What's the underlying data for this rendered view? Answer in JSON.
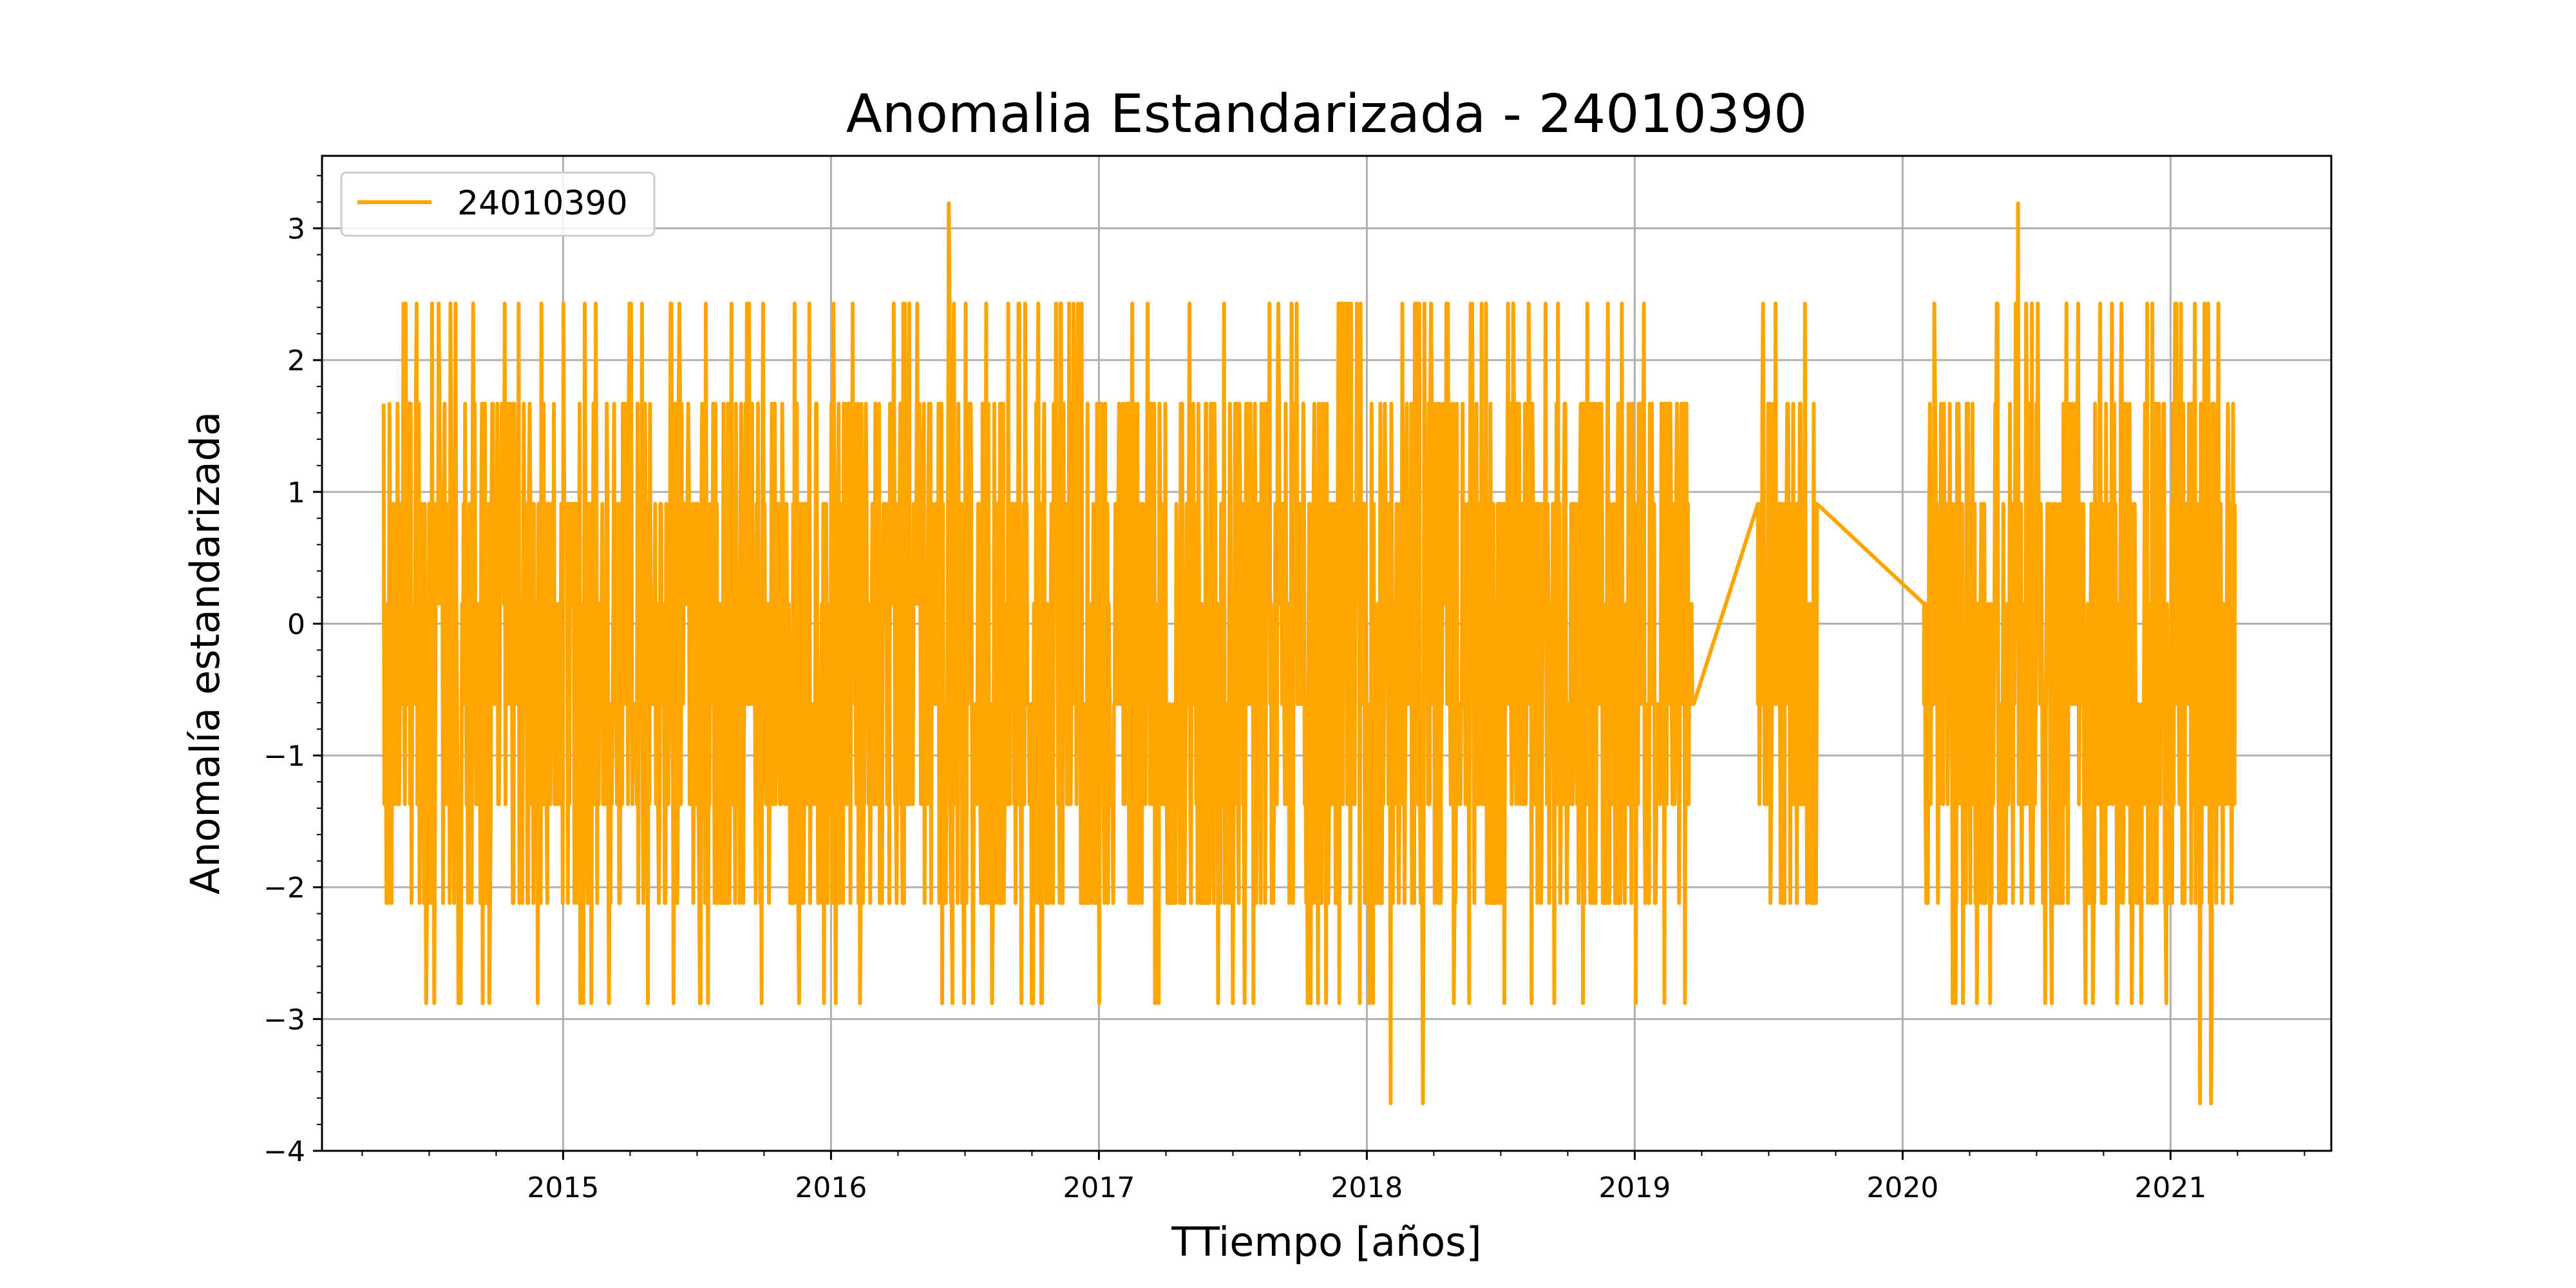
{
  "chart_data": {
    "type": "line",
    "title": "Anomalia Estandarizada - 24010390",
    "xlabel": "TTiempo [años]",
    "ylabel": "Anomalía estandarizada",
    "xlim": [
      2014.1,
      2021.6
    ],
    "ylim": [
      -4,
      3.55
    ],
    "x_ticks": [
      2015,
      2016,
      2017,
      2018,
      2019,
      2020,
      2021
    ],
    "x_tick_labels": [
      "2015",
      "2016",
      "2017",
      "2018",
      "2019",
      "2020",
      "2021"
    ],
    "y_ticks": [
      -4,
      -3,
      -2,
      -1,
      0,
      1,
      2,
      3
    ],
    "y_tick_labels": [
      "−4",
      "−3",
      "−2",
      "−1",
      "0",
      "1",
      "2",
      "3"
    ],
    "grid": true,
    "legend_position": "top-left",
    "series": [
      {
        "name": "24010390",
        "color": "#ffa500",
        "levels": [
          -3.64,
          -2.88,
          -2.12,
          -1.37,
          -0.61,
          0.15,
          0.91,
          1.67,
          2.43,
          3.19
        ],
        "segments": [
          {
            "start": 2014.33,
            "end": 2019.22
          },
          {
            "start": 2019.46,
            "end": 2019.68
          },
          {
            "start": 2020.08,
            "end": 2021.24
          }
        ],
        "bridge_points": [
          {
            "x": 2019.22,
            "y": -0.61
          },
          {
            "x": 2019.46,
            "y": 0.91
          },
          {
            "x": 2019.68,
            "y": 0.91
          },
          {
            "x": 2020.08,
            "y": 0.15
          },
          {
            "x": 2020.2,
            "y": -1.37
          },
          {
            "x": 2020.28,
            "y": 0.15
          },
          {
            "x": 2020.96,
            "y": -0.61
          },
          {
            "x": 2021.04,
            "y": 0.15
          }
        ],
        "extremes": [
          {
            "x": 2016.44,
            "y": 3.19
          },
          {
            "x": 2020.43,
            "y": 3.19
          },
          {
            "x": 2018.09,
            "y": -3.64
          },
          {
            "x": 2018.21,
            "y": -3.64
          },
          {
            "x": 2021.11,
            "y": -3.64
          },
          {
            "x": 2021.15,
            "y": -3.64
          },
          {
            "x": 2014.7,
            "y": -2.88
          },
          {
            "x": 2015.17,
            "y": -2.88
          },
          {
            "x": 2015.88,
            "y": -2.88
          },
          {
            "x": 2016.75,
            "y": -2.88
          },
          {
            "x": 2017.78,
            "y": -2.88
          },
          {
            "x": 2018.7,
            "y": -2.88
          },
          {
            "x": 2019.11,
            "y": -2.88
          },
          {
            "x": 2020.8,
            "y": -2.88
          }
        ]
      }
    ]
  }
}
